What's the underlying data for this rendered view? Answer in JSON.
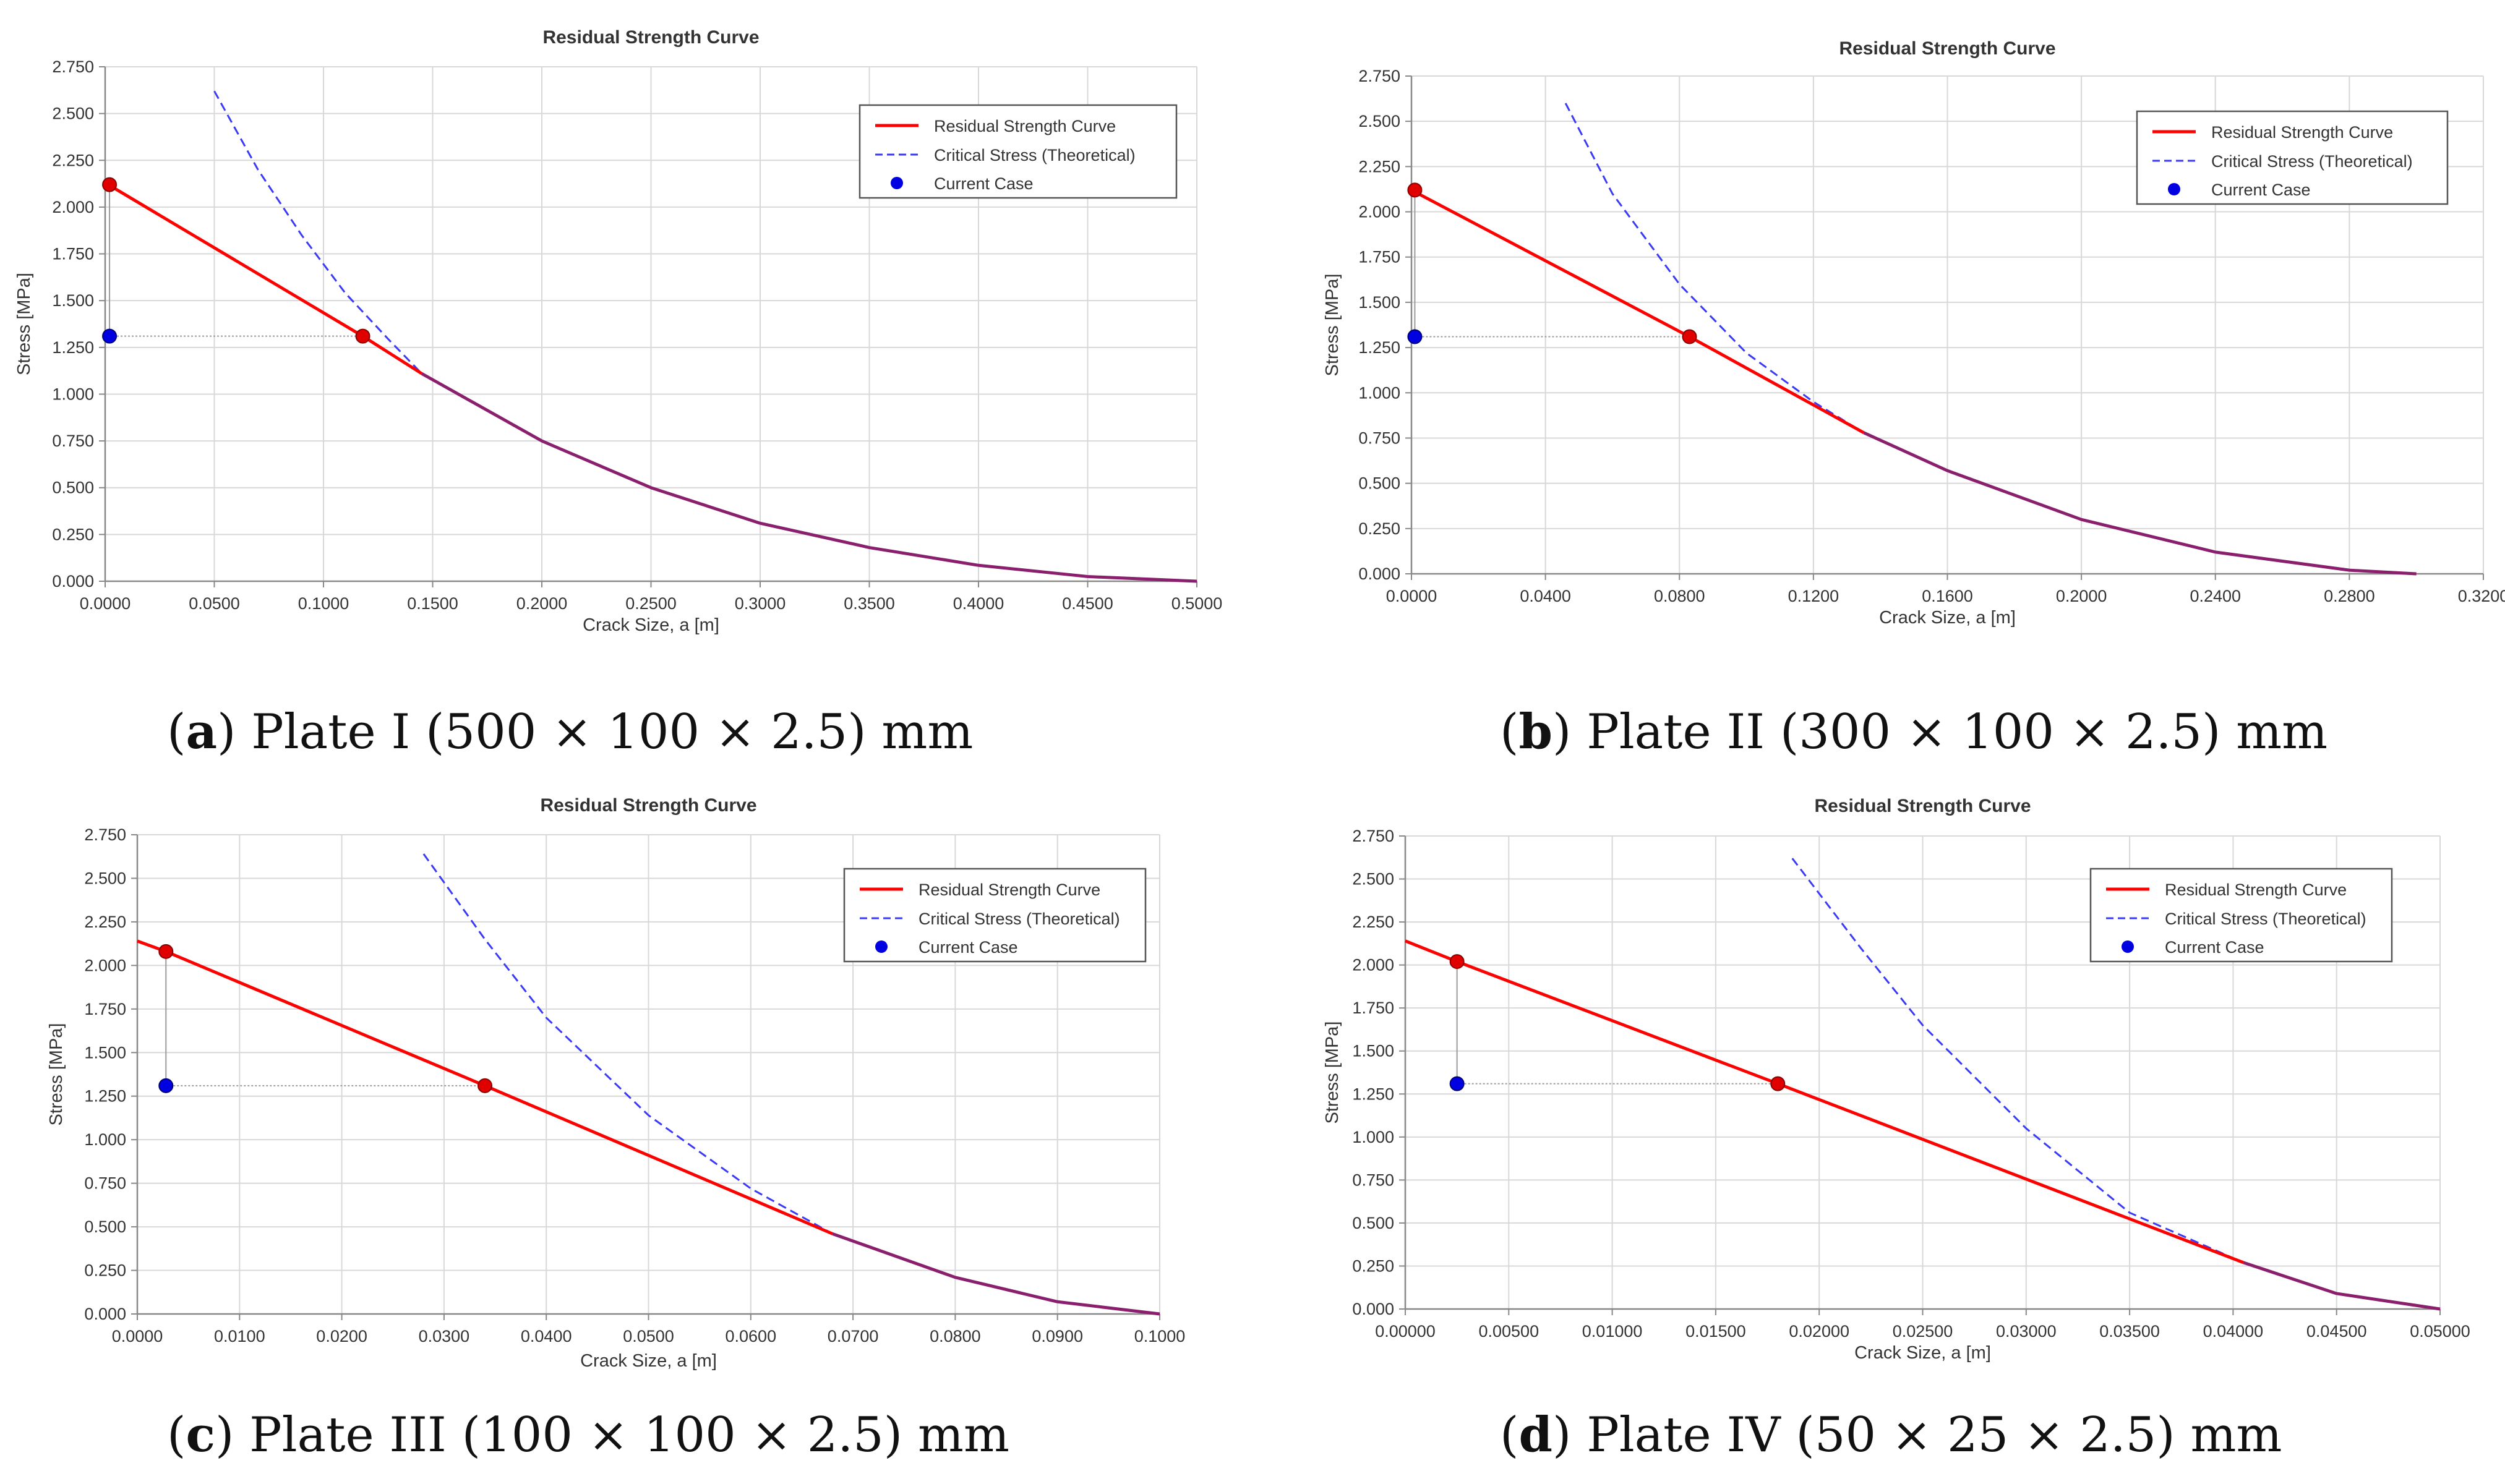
{
  "chart_data": [
    {
      "type": "line",
      "title": "Residual Strength Curve",
      "xlabel": "Crack Size, a [m]",
      "ylabel": "Stress [MPa]",
      "xlim": [
        0,
        0.5
      ],
      "ylim": [
        0,
        2.75
      ],
      "xticks": [
        "0.0000",
        "0.0500",
        "0.1000",
        "0.1500",
        "0.2000",
        "0.2500",
        "0.3000",
        "0.3500",
        "0.4000",
        "0.4500",
        "0.5000"
      ],
      "yticks": [
        "0.000",
        "0.250",
        "0.500",
        "0.750",
        "1.000",
        "1.250",
        "1.500",
        "1.750",
        "2.000",
        "2.250",
        "2.500",
        "2.750"
      ],
      "grid": true,
      "legend_position": "top-right",
      "legend": [
        "Residual Strength Curve",
        "Critical Stress (Theoretical)",
        "Current Case"
      ],
      "tangent_a": 0.145,
      "critical_start_a": 0.05,
      "series": [
        {
          "name": "Residual Strength Curve",
          "x": [
            0,
            0.118,
            0.145,
            0.2,
            0.25,
            0.3,
            0.35,
            0.4,
            0.45,
            0.5
          ],
          "y": [
            2.13,
            1.31,
            1.11,
            0.75,
            0.5,
            0.31,
            0.18,
            0.085,
            0.025,
            0
          ]
        },
        {
          "name": "Critical Stress (Theoretical)",
          "x": [
            0.05,
            0.07,
            0.09,
            0.11,
            0.13,
            0.145,
            0.2,
            0.25,
            0.3,
            0.35,
            0.4,
            0.45,
            0.5
          ],
          "y": [
            2.62,
            2.2,
            1.85,
            1.54,
            1.29,
            1.11,
            0.75,
            0.5,
            0.31,
            0.18,
            0.085,
            0.025,
            0
          ]
        }
      ],
      "markers": {
        "red_top": {
          "x": 0.002,
          "y": 2.12
        },
        "red_mid": {
          "x": 0.118,
          "y": 1.31
        },
        "current_case": {
          "x": 0.002,
          "y": 1.31
        }
      },
      "caption": {
        "letter": "a",
        "text": "Plate I (500 × 100 × 2.5) mm"
      }
    },
    {
      "type": "line",
      "title": "Residual Strength Curve",
      "xlabel": "Crack Size, a [m]",
      "ylabel": "Stress [MPa]",
      "xlim": [
        0,
        0.32
      ],
      "ylim": [
        0,
        2.75
      ],
      "xticks": [
        "0.0000",
        "0.0400",
        "0.0800",
        "0.1200",
        "0.1600",
        "0.2000",
        "0.2400",
        "0.2800",
        "0.3200"
      ],
      "yticks": [
        "0.000",
        "0.250",
        "0.500",
        "0.750",
        "1.000",
        "1.250",
        "1.500",
        "1.750",
        "2.000",
        "2.250",
        "2.500",
        "2.750"
      ],
      "grid": true,
      "legend_position": "top-right",
      "legend": [
        "Residual Strength Curve",
        "Critical Stress (Theoretical)",
        "Current Case"
      ],
      "tangent_a": 0.135,
      "critical_start_a": 0.046,
      "series": [
        {
          "name": "Residual Strength Curve",
          "x": [
            0,
            0.083,
            0.135,
            0.16,
            0.2,
            0.24,
            0.28,
            0.3
          ],
          "y": [
            2.12,
            1.31,
            0.78,
            0.57,
            0.3,
            0.12,
            0.02,
            0
          ]
        },
        {
          "name": "Critical Stress (Theoretical)",
          "x": [
            0.046,
            0.06,
            0.08,
            0.1,
            0.12,
            0.135,
            0.16,
            0.2,
            0.24,
            0.28,
            0.3
          ],
          "y": [
            2.6,
            2.1,
            1.6,
            1.22,
            0.95,
            0.78,
            0.57,
            0.3,
            0.12,
            0.02,
            0
          ]
        }
      ],
      "markers": {
        "red_top": {
          "x": 0.001,
          "y": 2.12
        },
        "red_mid": {
          "x": 0.083,
          "y": 1.31
        },
        "current_case": {
          "x": 0.001,
          "y": 1.31
        }
      },
      "caption": {
        "letter": "b",
        "text": "Plate II (300 × 100 × 2.5) mm"
      }
    },
    {
      "type": "line",
      "title": "Residual Strength Curve",
      "xlabel": "Crack Size, a [m]",
      "ylabel": "Stress [MPa]",
      "xlim": [
        0,
        0.1
      ],
      "ylim": [
        0,
        2.75
      ],
      "xticks": [
        "0.0000",
        "0.0100",
        "0.0200",
        "0.0300",
        "0.0400",
        "0.0500",
        "0.0600",
        "0.0700",
        "0.0800",
        "0.0900",
        "0.1000"
      ],
      "yticks": [
        "0.000",
        "0.250",
        "0.500",
        "0.750",
        "1.000",
        "1.250",
        "1.500",
        "1.750",
        "2.000",
        "2.250",
        "2.500",
        "2.750"
      ],
      "grid": true,
      "legend_position": "top-right",
      "legend": [
        "Residual Strength Curve",
        "Critical Stress (Theoretical)",
        "Current Case"
      ],
      "tangent_a": 0.068,
      "critical_start_a": 0.028,
      "series": [
        {
          "name": "Residual Strength Curve",
          "x": [
            0,
            0.0028,
            0.034,
            0.068,
            0.08,
            0.09,
            0.1
          ],
          "y": [
            2.14,
            2.08,
            1.31,
            0.46,
            0.21,
            0.07,
            0
          ]
        },
        {
          "name": "Critical Stress (Theoretical)",
          "x": [
            0.028,
            0.034,
            0.04,
            0.05,
            0.06,
            0.068,
            0.08,
            0.09,
            0.1
          ],
          "y": [
            2.64,
            2.15,
            1.7,
            1.14,
            0.72,
            0.46,
            0.21,
            0.07,
            0
          ]
        }
      ],
      "markers": {
        "red_top": {
          "x": 0.0028,
          "y": 2.08
        },
        "red_mid": {
          "x": 0.034,
          "y": 1.31
        },
        "current_case": {
          "x": 0.0028,
          "y": 1.31
        }
      },
      "caption": {
        "letter": "c",
        "text": "Plate III (100 × 100 × 2.5) mm"
      }
    },
    {
      "type": "line",
      "title": "Residual Strength Curve",
      "xlabel": "Crack Size, a [m]",
      "ylabel": "Stress [MPa]",
      "xlim": [
        0,
        0.05
      ],
      "ylim": [
        0,
        2.75
      ],
      "xticks": [
        "0.00000",
        "0.00500",
        "0.01000",
        "0.01500",
        "0.02000",
        "0.02500",
        "0.03000",
        "0.03500",
        "0.04000",
        "0.04500",
        "0.05000"
      ],
      "yticks": [
        "0.000",
        "0.250",
        "0.500",
        "0.750",
        "1.000",
        "1.250",
        "1.500",
        "1.750",
        "2.000",
        "2.250",
        "2.500",
        "2.750"
      ],
      "grid": true,
      "legend_position": "top-right",
      "legend": [
        "Residual Strength Curve",
        "Critical Stress (Theoretical)",
        "Current Case"
      ],
      "tangent_a": 0.0405,
      "critical_start_a": 0.0187,
      "series": [
        {
          "name": "Residual Strength Curve",
          "x": [
            0,
            0.0025,
            0.018,
            0.0405,
            0.045,
            0.05
          ],
          "y": [
            2.14,
            2.02,
            1.31,
            0.27,
            0.09,
            0
          ]
        },
        {
          "name": "Critical Stress (Theoretical)",
          "x": [
            0.0187,
            0.022,
            0.025,
            0.03,
            0.035,
            0.0405,
            0.045,
            0.05
          ],
          "y": [
            2.62,
            2.1,
            1.65,
            1.05,
            0.56,
            0.27,
            0.09,
            0
          ]
        }
      ],
      "markers": {
        "red_top": {
          "x": 0.0025,
          "y": 2.02
        },
        "red_mid": {
          "x": 0.018,
          "y": 1.31
        },
        "current_case": {
          "x": 0.0025,
          "y": 1.31
        }
      },
      "caption": {
        "letter": "d",
        "text": "Plate IV (50 × 25 × 2.5) mm"
      }
    }
  ],
  "colors": {
    "residual": "#ff0000",
    "critical": "#3a3af5",
    "current": "#0000e0",
    "overlap": "#8a1f6e",
    "grid": "#d8d8d8",
    "axis": "#888888",
    "text": "#333333",
    "marker_red": "#e00000"
  }
}
